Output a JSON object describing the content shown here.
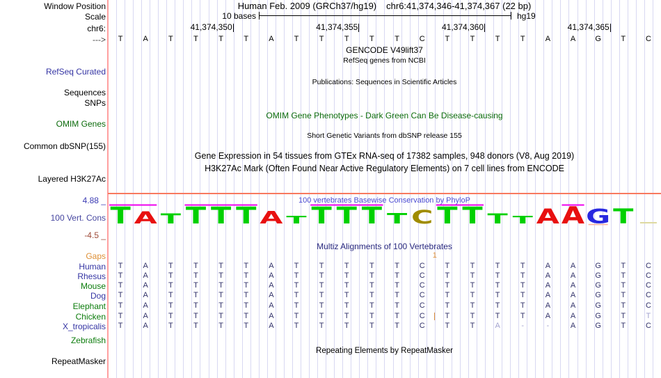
{
  "header": {
    "assembly": "Human Feb. 2009 (GRCh37/hg19)",
    "position": "chr6:41,374,346-41,374,367 (22 bp)"
  },
  "gutter": {
    "window_position": "Window Position",
    "scale": "Scale",
    "chrom": "chr6:",
    "strand": "--->",
    "refseq_curated": "RefSeq Curated",
    "sequences": "Sequences",
    "snps": "SNPs",
    "omim_genes": "OMIM Genes",
    "common_dbsnp": "Common dbSNP(155)",
    "layered_h3k27ac": "Layered H3K27Ac",
    "cons_scale_max": "4.88 _",
    "vert_cons": "100 Vert. Cons",
    "cons_scale_min": "-4.5 _",
    "repeatmasker": "RepeatMasker"
  },
  "scale_bar": {
    "label": "10 bases",
    "assembly_tag": "hg19"
  },
  "ruler_ticks": [
    {
      "label": "41,374,350",
      "col": 5
    },
    {
      "label": "41,374,355",
      "col": 10
    },
    {
      "label": "41,374,360",
      "col": 15
    },
    {
      "label": "41,374,365",
      "col": 20
    }
  ],
  "sequence": "TATTTTATTTTTCTTTTAAGTC",
  "notes": {
    "gencode": "GENCODE V49lift37",
    "refseq_ncbi": "RefSeq genes from NCBI",
    "publications": "Publications: Sequences in Scientific Articles",
    "omim": "OMIM Gene Phenotypes - Dark Green Can Be Disease-causing",
    "dbsnp": "Short Genetic Variants from dbSNP release 155",
    "gtex": "Gene Expression in 54 tissues from GTEx RNA-seq of 17382 samples, 948 donors (V8, Aug 2019)",
    "h3k27ac": "H3K27Ac Mark (Often Found Near Active Regulatory Elements) on 7 cell lines from ENCODE",
    "phylop": "100 vertebrates Basewise Conservation by PhyloP",
    "multiz": "Multiz Alignments of 100 Vertebrates",
    "repeatmasker": "Repeating Elements by RepeatMasker"
  },
  "conservation_logo": {
    "letters": [
      {
        "base": "T",
        "height": 1.0
      },
      {
        "base": "A",
        "height": 0.72
      },
      {
        "base": "T",
        "height": 0.6
      },
      {
        "base": "T",
        "height": 1.0
      },
      {
        "base": "T",
        "height": 1.0
      },
      {
        "base": "T",
        "height": 1.0
      },
      {
        "base": "A",
        "height": 0.75
      },
      {
        "base": "T",
        "height": 0.45
      },
      {
        "base": "T",
        "height": 1.0
      },
      {
        "base": "T",
        "height": 1.0
      },
      {
        "base": "T",
        "height": 1.0
      },
      {
        "base": "T",
        "height": 0.62
      },
      {
        "base": "C",
        "height": 0.8
      },
      {
        "base": "T",
        "height": 1.0
      },
      {
        "base": "T",
        "height": 1.0
      },
      {
        "base": "T",
        "height": 0.6
      },
      {
        "base": "T",
        "height": 0.45
      },
      {
        "base": "A",
        "height": 0.9
      },
      {
        "base": "A",
        "height": 1.02
      },
      {
        "base": "G",
        "height": 0.85,
        "underline": true
      },
      {
        "base": "T",
        "height": 0.9
      },
      {
        "base": "-",
        "height": 0.05
      }
    ],
    "cap_spans": [
      [
        1,
        2
      ],
      [
        4,
        6
      ],
      [
        9,
        11
      ],
      [
        14,
        15
      ],
      [
        19,
        19
      ]
    ]
  },
  "alignment": {
    "gap_row": {
      "label": "Gaps",
      "count": "1",
      "after_col": 13
    },
    "rows": [
      {
        "name": "Human",
        "color": "blue",
        "seq": "TATTTTATTTTTCTTTTAAGTC"
      },
      {
        "name": "Rhesus",
        "color": "blue",
        "seq": "TATTTTATTTTTCTTTTAAGTC"
      },
      {
        "name": "Mouse",
        "color": "green",
        "seq": "TATTTTATTTTTCTTTTAAGTC"
      },
      {
        "name": "Dog",
        "color": "blue",
        "seq": "TATTTTATTTTTCTTTTAAGTC"
      },
      {
        "name": "Elephant",
        "color": "green",
        "seq": "TATTTTATTTTTCTTTTAAGTC"
      },
      {
        "name": "Chicken",
        "color": "green",
        "seq": "TATTTTATTTTTCTTTTAAGTT",
        "faint_cols": [
          22
        ],
        "insert_after_col": 13
      },
      {
        "name": "X_tropicalis",
        "color": "blue",
        "seq": "TATTTTATTTTTCTTA--AGTC",
        "faint_cols": [
          16,
          17,
          18
        ]
      },
      {
        "name": "Zebrafish",
        "color": "green",
        "seq": ""
      }
    ]
  },
  "colors": {
    "grid": "#d8d8f2",
    "guide_line": "#ffa0a0",
    "h3k27ac_baseline": "#f8795f",
    "cap_magenta": "#ee00ee",
    "gap_orange": "#de9036",
    "label_blue": "#3434a3",
    "label_green": "#0c7c0c",
    "vert_cons_label": "#4646a0",
    "scale_max": "#3c3cb4",
    "scale_min": "#9e4b38",
    "align_letter": "#32326b",
    "align_faint": "#a2a2cf",
    "phylop_title": "#4b4bd2",
    "multiz_title": "#26267d",
    "omim_green": "#0b6b0b",
    "logo_T": "#00d000",
    "logo_A": "#e81010",
    "logo_C": "#a08c00",
    "logo_G": "#2828e0",
    "logo_dash": "#ded9a1",
    "logo_g_underline": "#ffb09a"
  }
}
